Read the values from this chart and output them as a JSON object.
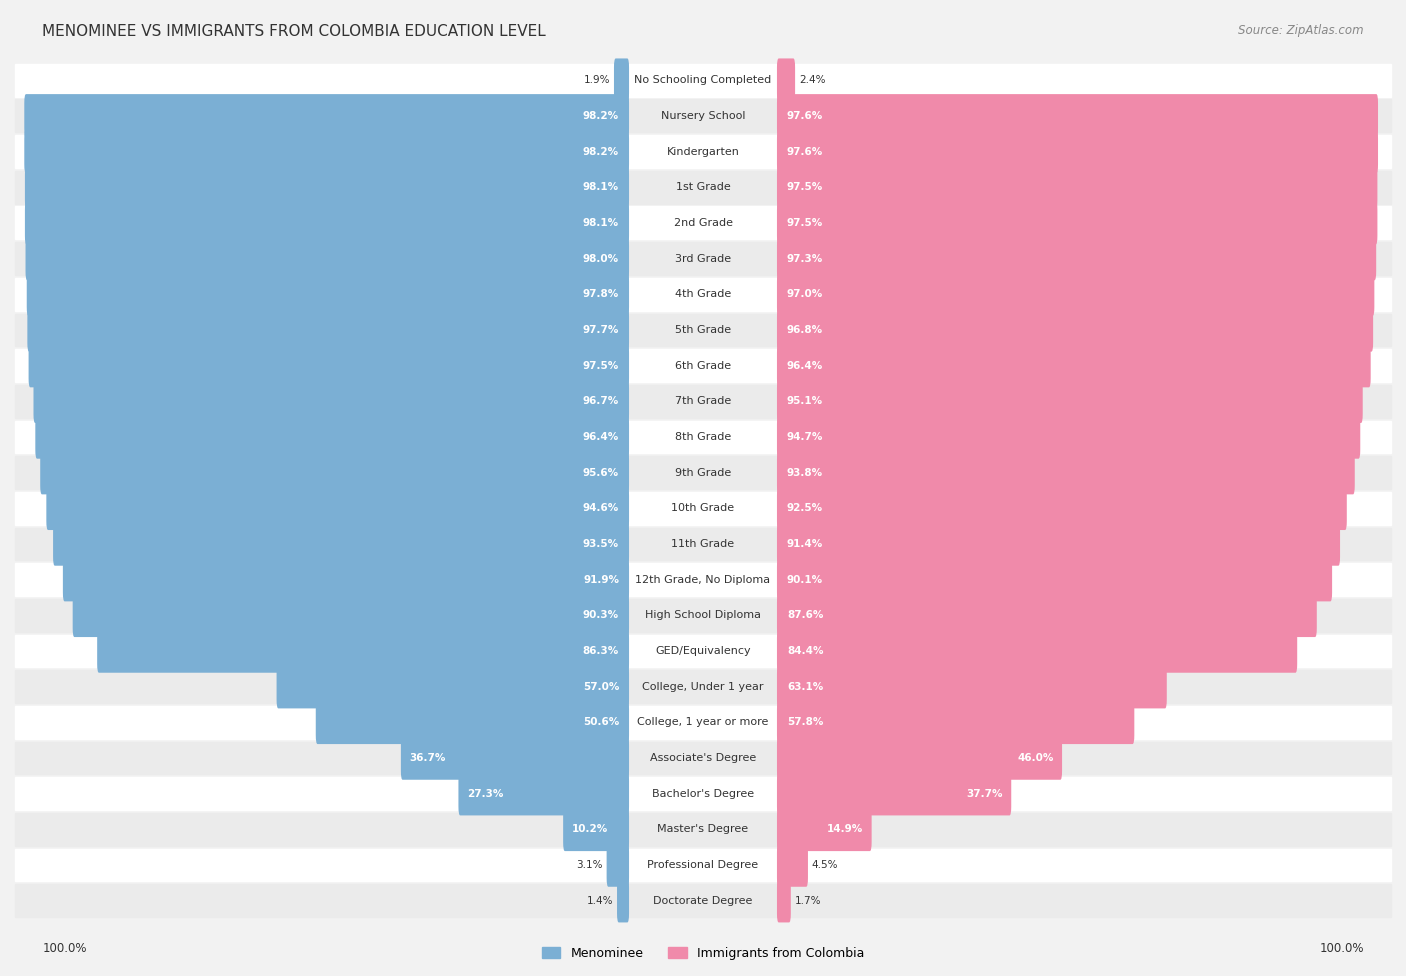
{
  "title": "MENOMINEE VS IMMIGRANTS FROM COLOMBIA EDUCATION LEVEL",
  "source": "Source: ZipAtlas.com",
  "categories": [
    "No Schooling Completed",
    "Nursery School",
    "Kindergarten",
    "1st Grade",
    "2nd Grade",
    "3rd Grade",
    "4th Grade",
    "5th Grade",
    "6th Grade",
    "7th Grade",
    "8th Grade",
    "9th Grade",
    "10th Grade",
    "11th Grade",
    "12th Grade, No Diploma",
    "High School Diploma",
    "GED/Equivalency",
    "College, Under 1 year",
    "College, 1 year or more",
    "Associate's Degree",
    "Bachelor's Degree",
    "Master's Degree",
    "Professional Degree",
    "Doctorate Degree"
  ],
  "menominee": [
    1.9,
    98.2,
    98.2,
    98.1,
    98.1,
    98.0,
    97.8,
    97.7,
    97.5,
    96.7,
    96.4,
    95.6,
    94.6,
    93.5,
    91.9,
    90.3,
    86.3,
    57.0,
    50.6,
    36.7,
    27.3,
    10.2,
    3.1,
    1.4
  ],
  "colombia": [
    2.4,
    97.6,
    97.6,
    97.5,
    97.5,
    97.3,
    97.0,
    96.8,
    96.4,
    95.1,
    94.7,
    93.8,
    92.5,
    91.4,
    90.1,
    87.6,
    84.4,
    63.1,
    57.8,
    46.0,
    37.7,
    14.9,
    4.5,
    1.7
  ],
  "menominee_color": "#7bafd4",
  "colombia_color": "#f08aaa",
  "bg_color": "#f2f2f2",
  "bar_bg_color": "#ffffff",
  "row_alt_color": "#ebebeb",
  "text_color": "#333333",
  "white": "#ffffff",
  "title_fontsize": 11,
  "source_fontsize": 8.5,
  "label_fontsize": 8,
  "value_fontsize": 7.5,
  "legend_fontsize": 9,
  "axis_fontsize": 8.5
}
